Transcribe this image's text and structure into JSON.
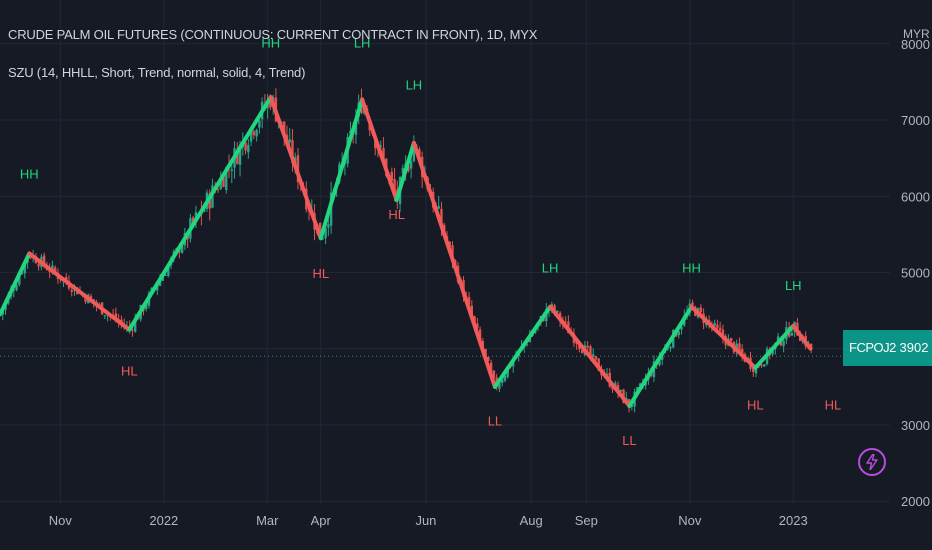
{
  "header": {
    "title": "CRUDE PALM OIL FUTURES (CONTINUOUS: CURRENT CONTRACT IN FRONT), 1D, MYX",
    "indicator": "SZU (14, HHLL, Short, Trend, normal, solid, 4, Trend)",
    "currency": "MYR"
  },
  "last_price": {
    "symbol": "FCPOJ2023",
    "value": "3902"
  },
  "colors": {
    "up": "#22d680",
    "down": "#f05a5a",
    "candle_up": "#2aa38a",
    "candle_down": "#e2524e",
    "label_green": "#22d680",
    "label_red": "#f05a5a",
    "background": "#161a25",
    "grid": "#232735",
    "accent": "#0d9488"
  },
  "icons": {
    "alert": "lightning-bolt-icon"
  },
  "chart_data": {
    "type": "line",
    "x_ticks": [
      {
        "label": "Nov",
        "d": 35
      },
      {
        "label": "2022",
        "d": 95
      },
      {
        "label": "Mar",
        "d": 155
      },
      {
        "label": "Apr",
        "d": 186
      },
      {
        "label": "Jun",
        "d": 247
      },
      {
        "label": "Aug",
        "d": 308
      },
      {
        "label": "Sep",
        "d": 340
      },
      {
        "label": "Nov",
        "d": 400
      },
      {
        "label": "2023",
        "d": 460
      }
    ],
    "y_ticks": [
      2000,
      3000,
      4000,
      5000,
      6000,
      7000,
      8000
    ],
    "ylim": [
      1950,
      8050
    ],
    "xlim": [
      0,
      490
    ],
    "zigzag": [
      {
        "d": 0,
        "v": 4450
      },
      {
        "d": 17,
        "v": 5250
      },
      {
        "d": 75,
        "v": 4250
      },
      {
        "d": 157,
        "v": 7300
      },
      {
        "d": 186,
        "v": 5450
      },
      {
        "d": 210,
        "v": 7270
      },
      {
        "d": 230,
        "v": 5950
      },
      {
        "d": 240,
        "v": 6700
      },
      {
        "d": 287,
        "v": 3500
      },
      {
        "d": 319,
        "v": 4550
      },
      {
        "d": 365,
        "v": 3250
      },
      {
        "d": 401,
        "v": 4550
      },
      {
        "d": 438,
        "v": 3750
      },
      {
        "d": 460,
        "v": 4300
      },
      {
        "d": 470,
        "v": 4000
      }
    ],
    "pivot_labels": [
      {
        "text": "HH",
        "d": 17,
        "v": 6230,
        "color": "green"
      },
      {
        "text": "HL",
        "d": 75,
        "v": 3650,
        "color": "red"
      },
      {
        "text": "HH",
        "d": 157,
        "v": 7950,
        "color": "green"
      },
      {
        "text": "HL",
        "d": 186,
        "v": 4930,
        "color": "red"
      },
      {
        "text": "LH",
        "d": 210,
        "v": 7950,
        "color": "green"
      },
      {
        "text": "HL",
        "d": 230,
        "v": 5700,
        "color": "red"
      },
      {
        "text": "LH",
        "d": 240,
        "v": 7400,
        "color": "green"
      },
      {
        "text": "LL",
        "d": 287,
        "v": 2990,
        "color": "red"
      },
      {
        "text": "LH",
        "d": 319,
        "v": 5000,
        "color": "green"
      },
      {
        "text": "LL",
        "d": 365,
        "v": 2740,
        "color": "red"
      },
      {
        "text": "HH",
        "d": 401,
        "v": 5000,
        "color": "green"
      },
      {
        "text": "HL",
        "d": 438,
        "v": 3200,
        "color": "red"
      },
      {
        "text": "LH",
        "d": 460,
        "v": 4770,
        "color": "green"
      },
      {
        "text": "HL",
        "d": 483,
        "v": 3200,
        "color": "red"
      }
    ],
    "last_value": 3902
  }
}
